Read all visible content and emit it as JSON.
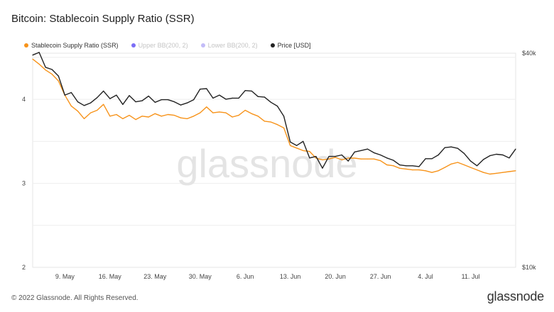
{
  "header": {
    "title": "Bitcoin: Stablecoin Supply Ratio (SSR)"
  },
  "legend": [
    {
      "label": "Stablecoin Supply Ratio (SSR)",
      "color": "#f7931a",
      "active": true
    },
    {
      "label": "Upper BB(200, 2)",
      "color": "#7b6ef6",
      "active": false
    },
    {
      "label": "Lower BB(200, 2)",
      "color": "#c3bcf8",
      "active": false
    },
    {
      "label": "Price [USD]",
      "color": "#222222",
      "active": true
    }
  ],
  "watermark": "glassnode",
  "footer": {
    "copyright": "© 2022 Glassnode. All Rights Reserved.",
    "logo": "glassnode"
  },
  "chart_data": {
    "type": "line",
    "x_ticks": [
      "9. May",
      "16. May",
      "23. May",
      "30. May",
      "6. Jun",
      "13. Jun",
      "20. Jun",
      "27. Jun",
      "4. Jul",
      "11. Jul"
    ],
    "x_start": "2022-05-04",
    "x_end": "2022-07-18",
    "left_axis": {
      "ticks": [
        "2",
        "3",
        "4"
      ],
      "min": 2.0,
      "max": 4.55,
      "scale": "linear"
    },
    "right_axis": {
      "ticks": [
        "$10k",
        "$40k"
      ],
      "min": 10000,
      "max": 40000,
      "scale": "log"
    },
    "grid": true,
    "legend_position": "top-left",
    "series": [
      {
        "name": "Stablecoin Supply Ratio (SSR)",
        "color": "#f7931a",
        "axis": "left",
        "x": [
          "2022-05-04",
          "2022-05-05",
          "2022-05-06",
          "2022-05-07",
          "2022-05-08",
          "2022-05-09",
          "2022-05-10",
          "2022-05-11",
          "2022-05-12",
          "2022-05-13",
          "2022-05-14",
          "2022-05-15",
          "2022-05-16",
          "2022-05-17",
          "2022-05-18",
          "2022-05-19",
          "2022-05-20",
          "2022-05-21",
          "2022-05-22",
          "2022-05-23",
          "2022-05-24",
          "2022-05-25",
          "2022-05-26",
          "2022-05-27",
          "2022-05-28",
          "2022-05-29",
          "2022-05-30",
          "2022-05-31",
          "2022-06-01",
          "2022-06-02",
          "2022-06-03",
          "2022-06-04",
          "2022-06-05",
          "2022-06-06",
          "2022-06-07",
          "2022-06-08",
          "2022-06-09",
          "2022-06-10",
          "2022-06-11",
          "2022-06-12",
          "2022-06-13",
          "2022-06-14",
          "2022-06-15",
          "2022-06-16",
          "2022-06-17",
          "2022-06-18",
          "2022-06-19",
          "2022-06-20",
          "2022-06-21",
          "2022-06-22",
          "2022-06-23",
          "2022-06-24",
          "2022-06-25",
          "2022-06-26",
          "2022-06-27",
          "2022-06-28",
          "2022-06-29",
          "2022-06-30",
          "2022-07-01",
          "2022-07-02",
          "2022-07-03",
          "2022-07-04",
          "2022-07-05",
          "2022-07-06",
          "2022-07-07",
          "2022-07-08",
          "2022-07-09",
          "2022-07-10",
          "2022-07-11",
          "2022-07-12",
          "2022-07-13",
          "2022-07-14",
          "2022-07-15",
          "2022-07-16",
          "2022-07-17",
          "2022-07-18"
        ],
        "values": [
          4.48,
          4.42,
          4.35,
          4.3,
          4.22,
          4.05,
          3.92,
          3.86,
          3.77,
          3.84,
          3.87,
          3.94,
          3.8,
          3.82,
          3.77,
          3.81,
          3.76,
          3.8,
          3.79,
          3.83,
          3.8,
          3.82,
          3.81,
          3.78,
          3.77,
          3.8,
          3.84,
          3.91,
          3.84,
          3.85,
          3.84,
          3.79,
          3.81,
          3.87,
          3.83,
          3.8,
          3.74,
          3.73,
          3.7,
          3.66,
          3.45,
          3.42,
          3.39,
          3.38,
          3.3,
          3.28,
          3.29,
          3.31,
          3.28,
          3.3,
          3.3,
          3.29,
          3.29,
          3.29,
          3.27,
          3.22,
          3.21,
          3.18,
          3.17,
          3.16,
          3.16,
          3.15,
          3.13,
          3.15,
          3.19,
          3.23,
          3.25,
          3.22,
          3.19,
          3.16,
          3.13,
          3.11,
          3.12,
          3.13,
          3.14,
          3.15
        ]
      },
      {
        "name": "Price [USD]",
        "color": "#222222",
        "axis": "right",
        "x": [
          "2022-05-04",
          "2022-05-05",
          "2022-05-06",
          "2022-05-07",
          "2022-05-08",
          "2022-05-09",
          "2022-05-10",
          "2022-05-11",
          "2022-05-12",
          "2022-05-13",
          "2022-05-14",
          "2022-05-15",
          "2022-05-16",
          "2022-05-17",
          "2022-05-18",
          "2022-05-19",
          "2022-05-20",
          "2022-05-21",
          "2022-05-22",
          "2022-05-23",
          "2022-05-24",
          "2022-05-25",
          "2022-05-26",
          "2022-05-27",
          "2022-05-28",
          "2022-05-29",
          "2022-05-30",
          "2022-05-31",
          "2022-06-01",
          "2022-06-02",
          "2022-06-03",
          "2022-06-04",
          "2022-06-05",
          "2022-06-06",
          "2022-06-07",
          "2022-06-08",
          "2022-06-09",
          "2022-06-10",
          "2022-06-11",
          "2022-06-12",
          "2022-06-13",
          "2022-06-14",
          "2022-06-15",
          "2022-06-16",
          "2022-06-17",
          "2022-06-18",
          "2022-06-19",
          "2022-06-20",
          "2022-06-21",
          "2022-06-22",
          "2022-06-23",
          "2022-06-24",
          "2022-06-25",
          "2022-06-26",
          "2022-06-27",
          "2022-06-28",
          "2022-06-29",
          "2022-06-30",
          "2022-07-01",
          "2022-07-02",
          "2022-07-03",
          "2022-07-04",
          "2022-07-05",
          "2022-07-06",
          "2022-07-07",
          "2022-07-08",
          "2022-07-09",
          "2022-07-10",
          "2022-07-11",
          "2022-07-12",
          "2022-07-13",
          "2022-07-14",
          "2022-07-15",
          "2022-07-16",
          "2022-07-17",
          "2022-07-18"
        ],
        "values": [
          39500,
          40200,
          36500,
          36000,
          34500,
          30500,
          31000,
          29200,
          28500,
          29000,
          30000,
          31300,
          29800,
          30500,
          28700,
          30400,
          29200,
          29400,
          30300,
          29100,
          29600,
          29600,
          29200,
          28600,
          29000,
          29600,
          31700,
          31800,
          29900,
          30500,
          29700,
          29900,
          29900,
          31400,
          31300,
          30200,
          30100,
          29100,
          28400,
          26600,
          22500,
          22000,
          22600,
          20300,
          20500,
          19000,
          20500,
          20500,
          20700,
          19900,
          21100,
          21300,
          21500,
          21000,
          20700,
          20300,
          20000,
          19400,
          19300,
          19300,
          19200,
          20200,
          20200,
          20700,
          21700,
          21800,
          21600,
          20900,
          19900,
          19300,
          20100,
          20600,
          20800,
          20700,
          20300,
          21500
        ]
      }
    ]
  }
}
